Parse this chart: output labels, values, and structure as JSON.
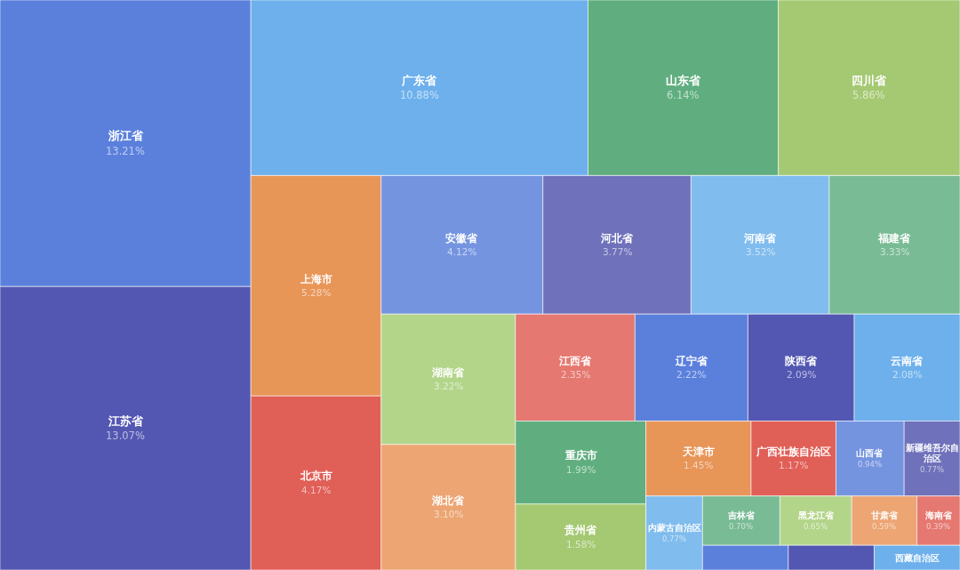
{
  "chart_data": {
    "type": "other",
    "categories": [
      "浙江省",
      "江苏省",
      "广东省",
      "山东省",
      "四川省",
      "上海市",
      "北京市",
      "安徽省",
      "河北省",
      "河南省",
      "福建省",
      "湖南省",
      "湖北省",
      "江西省",
      "辽宁省",
      "陕西省",
      "云南省",
      "重庆市",
      "贵州省",
      "天津市",
      "广西壮族自治区",
      "山西省",
      "新疆维吾尔自治区",
      "内蒙古自治区",
      "吉林省",
      "黑龙江省",
      "甘肃省",
      "海南省",
      null,
      null,
      "西藏自治区"
    ],
    "values": [
      13.21,
      13.07,
      10.88,
      6.14,
      5.86,
      5.28,
      4.17,
      4.12,
      3.77,
      3.52,
      3.33,
      3.22,
      3.1,
      2.35,
      2.22,
      2.09,
      2.08,
      1.99,
      1.58,
      1.45,
      1.17,
      0.94,
      0.77,
      0.77,
      0.7,
      0.65,
      0.59,
      0.39,
      null,
      null,
      null
    ],
    "value_labels": [
      "13.21%",
      "13.07%",
      "10.88%",
      "6.14%",
      "5.86%",
      "5.28%",
      "4.17%",
      "4.12%",
      "3.77%",
      "3.52%",
      "3.33%",
      "3.22%",
      "3.10%",
      "2.35%",
      "2.22%",
      "2.09%",
      "2.08%",
      "1.99%",
      "1.58%",
      "1.45%",
      "1.17%",
      "0.94%",
      "0.77%",
      "0.77%",
      "0.70%",
      "0.65%",
      "0.59%",
      "0.39%",
      null,
      null,
      null
    ],
    "colors": [
      "#5b80dc",
      "#5357b2",
      "#6db0ec",
      "#60ae7f",
      "#a5c973",
      "#e89558",
      "#e05f57",
      "#7594e0",
      "#6f71bb",
      "#80bced",
      "#79bb95",
      "#b3d58a",
      "#eca573",
      "#e57870",
      "#5b80dc",
      "#5357b2",
      "#6db0ec",
      "#60ae7f",
      "#a5c973",
      "#e89558",
      "#e05f57",
      "#7594e0",
      "#6f71bb",
      "#80bced",
      "#79bb95",
      "#b3d58a",
      "#eca573",
      "#e57870",
      "#5b80dc",
      "#5357b2",
      "#6db0ec"
    ]
  }
}
